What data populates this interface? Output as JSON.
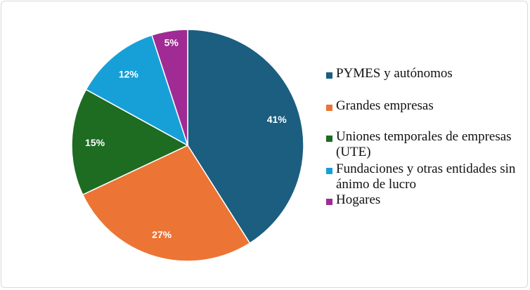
{
  "chart_data": {
    "type": "pie",
    "start_angle": "top",
    "direction": "clockwise",
    "legend_position": "right",
    "slices": [
      {
        "name": "PYMES y autónomos",
        "value": 41,
        "label": "41%",
        "color": "#1b5e80"
      },
      {
        "name": "Grandes empresas",
        "value": 27,
        "label": "27%",
        "color": "#ec7434"
      },
      {
        "name": "Uniones temporales de empresas (UTE)",
        "value": 15,
        "label": "15%",
        "color": "#1e6b22"
      },
      {
        "name": "Fundaciones y otras entidades sin ánimo de lucro",
        "value": 12,
        "label": "12%",
        "color": "#17a0d8"
      },
      {
        "name": "Hogares",
        "value": 5,
        "label": "5%",
        "color": "#a02b94"
      }
    ]
  }
}
